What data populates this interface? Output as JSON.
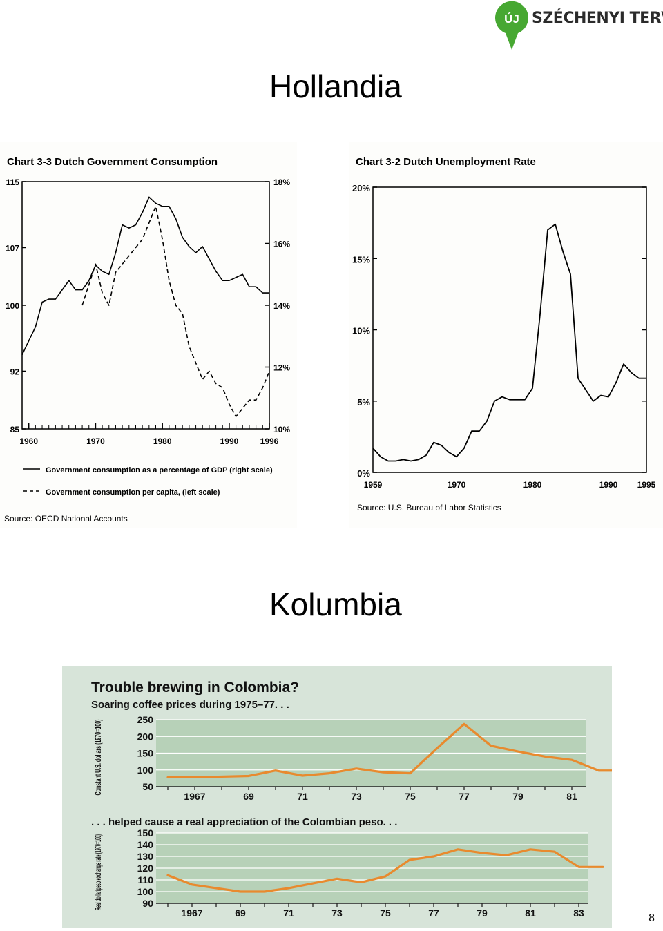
{
  "header": {
    "logo_brand": "ÚJ SZÉCHENYI TERV",
    "logo_badge": "ÚJ",
    "logo_text": "SZÉCHENYI TERV",
    "logo_color": "#47a832"
  },
  "sections": {
    "netherlands_title": "Hollandia",
    "colombia_title": "Kolumbia"
  },
  "page_number": "8",
  "chart_data": [
    {
      "type": "line",
      "id": "dutch-gov",
      "title": "Chart 3-3   Dutch Government Consumption",
      "x_ticks": [
        "1960",
        "1970",
        "1980",
        "1990",
        "1996"
      ],
      "xlim": [
        1959,
        1996
      ],
      "y_left_ticks": [
        "115",
        "107",
        "100",
        "92",
        "85"
      ],
      "ylim_left": [
        85,
        115
      ],
      "y_right_ticks": [
        "18%",
        "16%",
        "14%",
        "12%",
        "10%"
      ],
      "ylim_right": [
        10,
        18
      ],
      "series": [
        {
          "name": "Government consumption as a percentage of GDP (right scale)",
          "style": "solid",
          "axis": "right",
          "x": [
            1959,
            1961,
            1962,
            1963,
            1964,
            1965,
            1966,
            1967,
            1968,
            1969,
            1970,
            1971,
            1972,
            1973,
            1974,
            1975,
            1976,
            1977,
            1978,
            1979,
            1980,
            1981,
            1982,
            1983,
            1984,
            1985,
            1986,
            1987,
            1988,
            1989,
            1990,
            1991,
            1992,
            1993,
            1994,
            1995,
            1996
          ],
          "y": [
            12.4,
            13.3,
            14.1,
            14.2,
            14.2,
            14.5,
            14.8,
            14.5,
            14.5,
            14.8,
            15.3,
            15.1,
            15.0,
            15.7,
            16.6,
            16.5,
            16.6,
            17.0,
            17.5,
            17.3,
            17.2,
            17.2,
            16.8,
            16.2,
            15.9,
            15.7,
            15.9,
            15.5,
            15.1,
            14.8,
            14.8,
            14.9,
            15.0,
            14.6,
            14.6,
            14.4,
            14.4
          ]
        },
        {
          "name": "Government consumption per capita, (left scale)",
          "style": "dashed",
          "axis": "left",
          "x": [
            1968,
            1969,
            1970,
            1971,
            1972,
            1973,
            1974,
            1975,
            1976,
            1977,
            1978,
            1979,
            1980,
            1981,
            1982,
            1983,
            1984,
            1985,
            1986,
            1987,
            1988,
            1989,
            1990,
            1991,
            1992,
            1993,
            1994,
            1995,
            1996
          ],
          "y": [
            100,
            102.5,
            105,
            101.5,
            100,
            104,
            105,
            106,
            107,
            108,
            110,
            112,
            108,
            103,
            100,
            99,
            95,
            93,
            91,
            92,
            90.5,
            90,
            88,
            86.5,
            87.5,
            88.5,
            88.5,
            90,
            92
          ]
        }
      ],
      "source": "Source: OECD National Accounts"
    },
    {
      "type": "line",
      "id": "dutch-unemployment",
      "title": "Chart 3-2   Dutch Unemployment Rate",
      "x_ticks": [
        "1959",
        "1970",
        "1980",
        "1990",
        "1995"
      ],
      "xlim": [
        1959,
        1995
      ],
      "y_ticks": [
        "20%",
        "15%",
        "10%",
        "5%",
        "0%"
      ],
      "ylim": [
        0,
        20
      ],
      "series": [
        {
          "name": "",
          "x": [
            1959,
            1960,
            1961,
            1962,
            1963,
            1964,
            1965,
            1966,
            1967,
            1968,
            1969,
            1970,
            1971,
            1972,
            1973,
            1974,
            1975,
            1976,
            1977,
            1978,
            1979,
            1980,
            1981,
            1982,
            1983,
            1984,
            1985,
            1986,
            1987,
            1988,
            1989,
            1990,
            1991,
            1992,
            1993,
            1994,
            1995
          ],
          "y": [
            1.7,
            1.1,
            0.8,
            0.8,
            0.9,
            0.8,
            0.9,
            1.2,
            2.1,
            1.9,
            1.4,
            1.1,
            1.7,
            2.9,
            2.9,
            3.6,
            5.0,
            5.3,
            5.1,
            5.1,
            5.1,
            5.9,
            11.1,
            17.0,
            17.4,
            15.5,
            13.9,
            6.6,
            5.8,
            5.0,
            5.4,
            5.3,
            6.3,
            7.6,
            7.0,
            6.6,
            6.6
          ]
        }
      ],
      "source": "Source: U.S. Bureau of Labor Statistics"
    },
    {
      "type": "line",
      "id": "colombia-coffee",
      "title": "Trouble brewing in Colombia?",
      "subtitle": "Soaring coffee prices during 1975–77. . .",
      "ylabel": "Constant U.S. dollars (1970=100)",
      "x_ticks": [
        "1967",
        "69",
        "71",
        "73",
        "75",
        "77",
        "79",
        "81"
      ],
      "y_ticks": [
        "250",
        "200",
        "150",
        "100",
        "50"
      ],
      "ylim": [
        50,
        250
      ],
      "color": "#e88a2e",
      "series": [
        {
          "name": "",
          "x": [
            1966,
            1967,
            1968,
            1969,
            1970,
            1971,
            1972,
            1973,
            1974,
            1975,
            1976,
            1977,
            1978,
            1979,
            1980,
            1981,
            1982,
            1983
          ],
          "y": [
            78,
            78,
            80,
            82,
            98,
            83,
            90,
            104,
            93,
            90,
            165,
            237,
            172,
            155,
            140,
            130,
            98,
            98
          ]
        }
      ]
    },
    {
      "type": "line",
      "id": "colombia-peso",
      "title": ". . . helped cause a real appreciation of the Colombian peso. . .",
      "ylabel": "Real dollar/peso exchange rate (1970=100)",
      "x_ticks": [
        "1967",
        "69",
        "71",
        "73",
        "75",
        "77",
        "79",
        "81",
        "83"
      ],
      "y_ticks": [
        "150",
        "140",
        "130",
        "120",
        "110",
        "100",
        "90"
      ],
      "ylim": [
        90,
        150
      ],
      "color": "#e88a2e",
      "series": [
        {
          "name": "",
          "x": [
            1966,
            1967,
            1968,
            1969,
            1970,
            1971,
            1972,
            1973,
            1974,
            1975,
            1976,
            1977,
            1978,
            1979,
            1980,
            1981,
            1982,
            1983,
            1984
          ],
          "y": [
            114,
            106,
            103,
            100,
            100,
            103,
            107,
            111,
            108,
            113,
            127,
            130,
            136,
            133,
            131,
            136,
            134,
            121,
            121
          ]
        }
      ]
    }
  ]
}
